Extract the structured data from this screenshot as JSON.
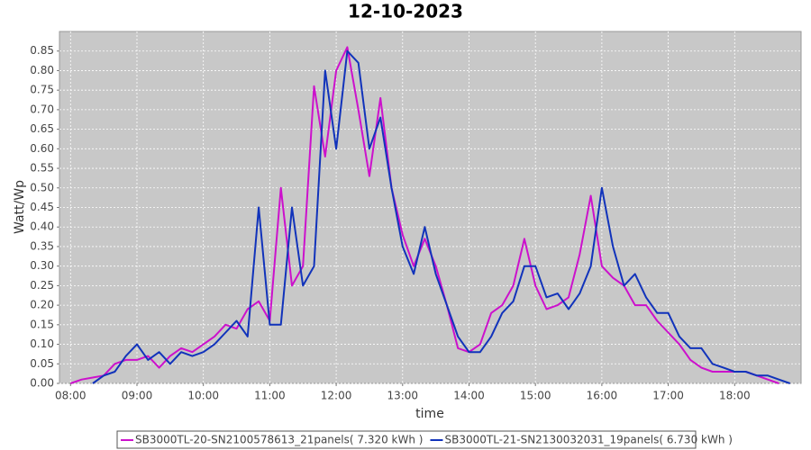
{
  "chart_data": {
    "type": "line",
    "title": "12-10-2023",
    "x_label": "time",
    "y_label": "Watt/Wp",
    "x": [
      "08:00",
      "08:10",
      "08:20",
      "08:30",
      "08:40",
      "08:50",
      "09:00",
      "09:10",
      "09:20",
      "09:30",
      "09:40",
      "09:50",
      "10:00",
      "10:10",
      "10:20",
      "10:30",
      "10:40",
      "10:50",
      "11:00",
      "11:10",
      "11:20",
      "11:30",
      "11:40",
      "11:50",
      "12:00",
      "12:10",
      "12:20",
      "12:30",
      "12:40",
      "12:50",
      "13:00",
      "13:10",
      "13:20",
      "13:30",
      "13:40",
      "13:50",
      "14:00",
      "14:10",
      "14:20",
      "14:30",
      "14:40",
      "14:50",
      "15:00",
      "15:10",
      "15:20",
      "15:30",
      "15:40",
      "15:50",
      "16:00",
      "16:10",
      "16:20",
      "16:30",
      "16:40",
      "16:50",
      "17:00",
      "17:10",
      "17:20",
      "17:30",
      "17:40",
      "17:50",
      "18:00",
      "18:10",
      "18:20",
      "18:30",
      "18:40",
      "18:50"
    ],
    "series": [
      {
        "name": "SB3000TL-20-SN2100578613_21panels( 7.320 kWh )",
        "color": "#cc11cc",
        "values": [
          0.0,
          0.01,
          0.015,
          0.02,
          0.05,
          0.06,
          0.06,
          0.07,
          0.04,
          0.07,
          0.09,
          0.08,
          0.1,
          0.12,
          0.15,
          0.14,
          0.19,
          0.21,
          0.16,
          0.5,
          0.25,
          0.3,
          0.76,
          0.58,
          0.8,
          0.86,
          0.7,
          0.53,
          0.73,
          0.5,
          0.38,
          0.3,
          0.37,
          0.3,
          0.2,
          0.09,
          0.08,
          0.1,
          0.18,
          0.2,
          0.25,
          0.37,
          0.25,
          0.19,
          0.2,
          0.22,
          0.33,
          0.48,
          0.3,
          0.27,
          0.25,
          0.2,
          0.2,
          0.16,
          0.13,
          0.1,
          0.06,
          0.04,
          0.03,
          0.03,
          0.03,
          0.03,
          0.02,
          0.01,
          0.0,
          null
        ]
      },
      {
        "name": "SB3000TL-21-SN2130032031_19panels( 6.730 kWh )",
        "color": "#1133bb",
        "values": [
          null,
          null,
          0.0,
          0.02,
          0.03,
          0.07,
          0.1,
          0.06,
          0.08,
          0.05,
          0.08,
          0.07,
          0.08,
          0.1,
          0.13,
          0.16,
          0.12,
          0.45,
          0.15,
          0.15,
          0.45,
          0.25,
          0.3,
          0.8,
          0.6,
          0.85,
          0.82,
          0.6,
          0.68,
          0.5,
          0.35,
          0.28,
          0.4,
          0.28,
          0.2,
          0.12,
          0.08,
          0.08,
          0.12,
          0.18,
          0.21,
          0.3,
          0.3,
          0.22,
          0.23,
          0.19,
          0.23,
          0.3,
          0.5,
          0.35,
          0.25,
          0.28,
          0.22,
          0.18,
          0.18,
          0.12,
          0.09,
          0.09,
          0.05,
          0.04,
          0.03,
          0.03,
          0.02,
          0.02,
          0.01,
          0.0
        ]
      }
    ],
    "xlim": [
      "07:50",
      "19:00"
    ],
    "xticks": [
      "08:00",
      "09:00",
      "10:00",
      "11:00",
      "12:00",
      "13:00",
      "14:00",
      "15:00",
      "16:00",
      "17:00",
      "18:00"
    ],
    "ylim": [
      0,
      0.9
    ],
    "yticks": [
      {
        "value": 0,
        "label": "0.00"
      },
      {
        "value": 0.05,
        "label": "0.05"
      },
      {
        "value": 0.1,
        "label": "0.10"
      },
      {
        "value": 0.15,
        "label": "0.15"
      },
      {
        "value": 0.2,
        "label": "0.20"
      },
      {
        "value": 0.25,
        "label": "0.25"
      },
      {
        "value": 0.3,
        "label": "0.30"
      },
      {
        "value": 0.35,
        "label": "0.35"
      },
      {
        "value": 0.4,
        "label": "0.40"
      },
      {
        "value": 0.45,
        "label": "0.45"
      },
      {
        "value": 0.5,
        "label": "0.50"
      },
      {
        "value": 0.55,
        "label": "0.55"
      },
      {
        "value": 0.6,
        "label": "0.60"
      },
      {
        "value": 0.65,
        "label": "0.65"
      },
      {
        "value": 0.7,
        "label": "0.70"
      },
      {
        "value": 0.75,
        "label": "0.75"
      },
      {
        "value": 0.8,
        "label": "0.80"
      },
      {
        "value": 0.85,
        "label": "0.85"
      }
    ],
    "grid": true,
    "legend": "bottom"
  }
}
